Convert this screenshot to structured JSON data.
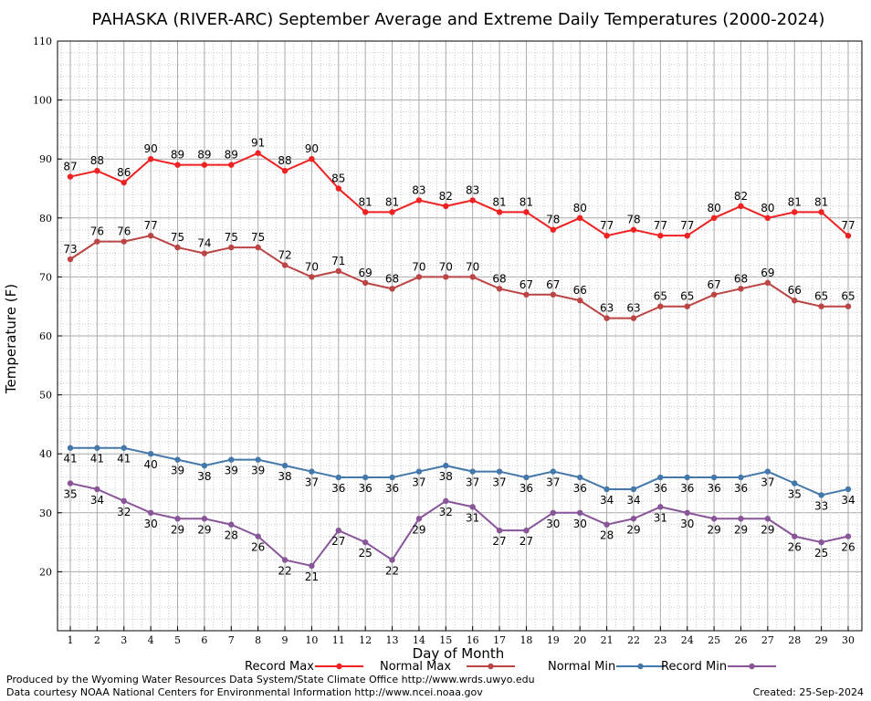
{
  "chart_data": {
    "type": "line",
    "title": "PAHASKA (RIVER-ARC) September Average and Extreme Daily Temperatures (2000-2024)",
    "xlabel": "Day of Month",
    "ylabel": "Temperature (F)",
    "xlim": [
      1,
      30
    ],
    "ylim": [
      10,
      110
    ],
    "yticks": [
      20,
      30,
      40,
      50,
      60,
      70,
      80,
      90,
      100,
      110
    ],
    "x": [
      1,
      2,
      3,
      4,
      5,
      6,
      7,
      8,
      9,
      10,
      11,
      12,
      13,
      14,
      15,
      16,
      17,
      18,
      19,
      20,
      21,
      22,
      23,
      24,
      25,
      26,
      27,
      28,
      29,
      30
    ],
    "grid": true,
    "legend_position": "bottom",
    "series": [
      {
        "name": "Record Max",
        "color": "#ee2222",
        "label_position": "above",
        "values": [
          87,
          88,
          86,
          90,
          89,
          89,
          89,
          91,
          88,
          90,
          85,
          81,
          81,
          83,
          82,
          83,
          81,
          81,
          78,
          80,
          77,
          78,
          77,
          77,
          80,
          82,
          80,
          81,
          81,
          77
        ]
      },
      {
        "name": "Normal Max",
        "color": "#bb4444",
        "label_position": "above",
        "values": [
          73,
          76,
          76,
          77,
          75,
          74,
          75,
          75,
          72,
          70,
          71,
          69,
          68,
          70,
          70,
          70,
          68,
          67,
          67,
          66,
          63,
          63,
          65,
          65,
          67,
          68,
          69,
          66,
          65,
          65
        ]
      },
      {
        "name": "Normal Min",
        "color": "#4477aa",
        "label_position": "below",
        "values": [
          41,
          41,
          41,
          40,
          39,
          38,
          39,
          39,
          38,
          37,
          36,
          36,
          36,
          37,
          38,
          37,
          37,
          36,
          37,
          36,
          34,
          34,
          36,
          36,
          36,
          36,
          37,
          35,
          33,
          34
        ]
      },
      {
        "name": "Record Min",
        "color": "#885599",
        "label_position": "below",
        "values": [
          35,
          34,
          32,
          30,
          29,
          29,
          28,
          26,
          22,
          21,
          27,
          25,
          22,
          29,
          32,
          31,
          27,
          27,
          30,
          30,
          28,
          29,
          31,
          30,
          29,
          29,
          29,
          26,
          25,
          26
        ]
      }
    ]
  },
  "footer": {
    "produced_by": "Produced by the Wyoming Water Resources Data System/State Climate Office http://www.wrds.uwyo.edu",
    "data_courtesy": "Data courtesy NOAA National Centers for Environmental Information http://www.ncei.noaa.gov",
    "created": "Created:  25-Sep-2024"
  }
}
